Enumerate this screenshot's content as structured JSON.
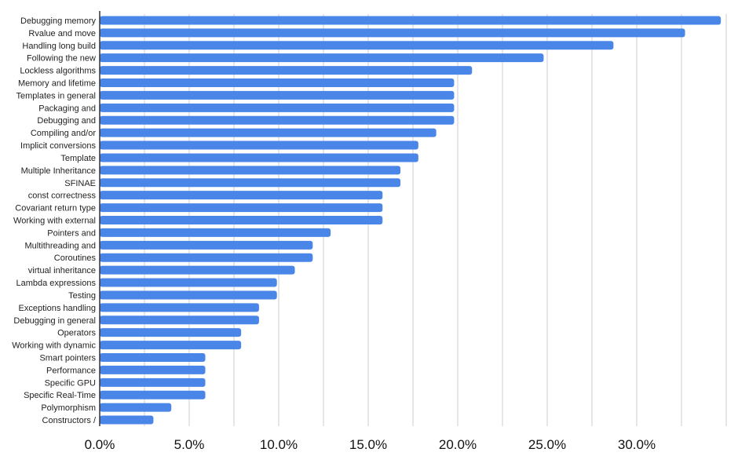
{
  "chart_data": {
    "type": "bar",
    "orientation": "horizontal",
    "title": "",
    "xlabel": "",
    "ylabel": "",
    "xlim": [
      0,
      35
    ],
    "x_ticks": [
      0,
      5,
      10,
      15,
      20,
      25,
      30
    ],
    "x_tick_labels": [
      "0.0%",
      "5.0%",
      "10.0%",
      "15.0%",
      "20.0%",
      "25.0%",
      "30.0%"
    ],
    "grid": "vertical",
    "bar_color": "#4a86e8",
    "categories": [
      "Debugging memory",
      "Rvalue and move",
      "Handling long build",
      "Following the new",
      "Lockless algorithms",
      "Memory and lifetime",
      "Templates in general",
      "Packaging and",
      "Debugging and",
      "Compiling and/or",
      "Implicit conversions",
      "Template",
      "Multiple Inheritance",
      "SFINAE",
      "const correctness",
      "Covariant return type",
      "Working with external",
      "Pointers and",
      "Multithreading and",
      "Coroutines",
      "virtual inheritance",
      "Lambda expressions",
      "Testing",
      "Exceptions handling",
      "Debugging in general",
      "Operators",
      "Working with dynamic",
      "Smart pointers",
      "Performance",
      "Specific GPU",
      "Specific Real-Time",
      "Polymorphism",
      "Constructors /"
    ],
    "values": [
      34.7,
      32.7,
      28.7,
      24.8,
      20.8,
      19.8,
      19.8,
      19.8,
      19.8,
      18.8,
      17.8,
      17.8,
      16.8,
      16.8,
      15.8,
      15.8,
      15.8,
      12.9,
      11.9,
      11.9,
      10.9,
      9.9,
      9.9,
      8.9,
      8.9,
      7.9,
      7.9,
      5.9,
      5.9,
      5.9,
      5.9,
      4.0,
      3.0
    ]
  }
}
